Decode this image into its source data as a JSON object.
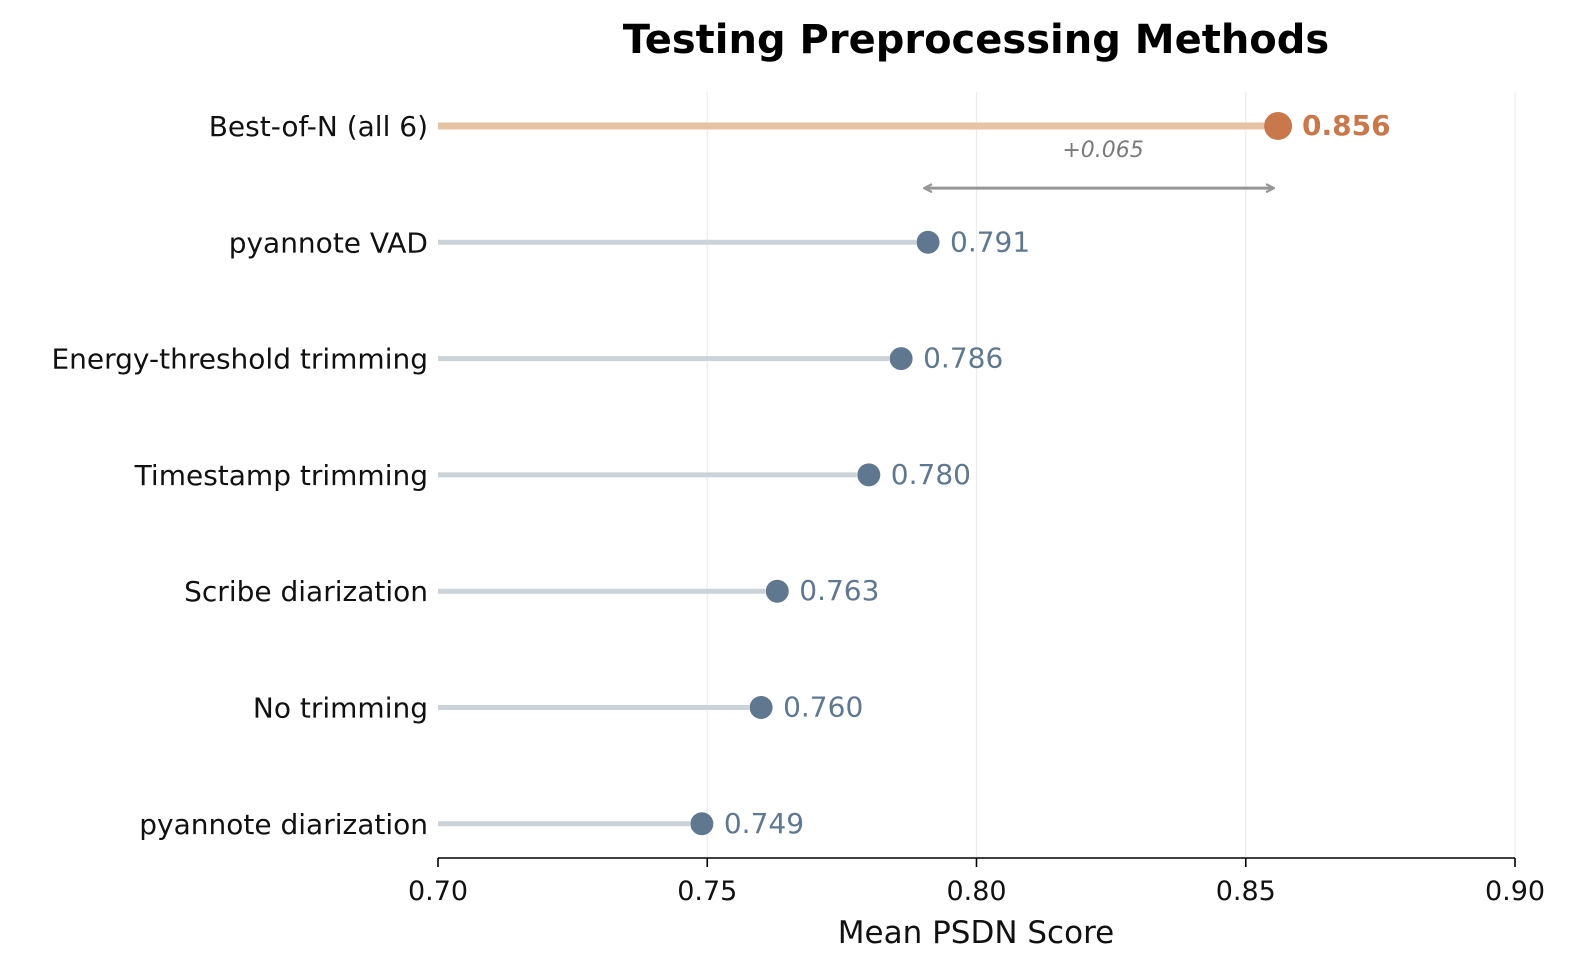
{
  "chart_data": {
    "type": "lollipop",
    "title": "Testing Preprocessing Methods",
    "xlabel": "Mean PSDN Score",
    "ylabel": "",
    "xlim": [
      0.7,
      0.9
    ],
    "xticks": [
      "0.70",
      "0.75",
      "0.80",
      "0.85",
      "0.90"
    ],
    "grid": "vertical",
    "categories": [
      "Best-of-N (all 6)",
      "pyannote VAD",
      "Energy-threshold trimming",
      "Timestamp trimming",
      "Scribe diarization",
      "No trimming",
      "pyannote diarization"
    ],
    "values": [
      0.856,
      0.791,
      0.786,
      0.78,
      0.763,
      0.76,
      0.749
    ],
    "value_labels": [
      "0.856",
      "0.791",
      "0.786",
      "0.780",
      "0.763",
      "0.760",
      "0.749"
    ],
    "highlight_index": 0,
    "annotation": {
      "text": "+0.065",
      "from": 0.791,
      "to": 0.856
    },
    "colors": {
      "highlight_point": "#c8784a",
      "highlight_stem": "#e6c3a3",
      "point": "#5f7890",
      "stem": "#cbd2d8",
      "annotation": "#969696",
      "grid": "#ececec"
    }
  }
}
